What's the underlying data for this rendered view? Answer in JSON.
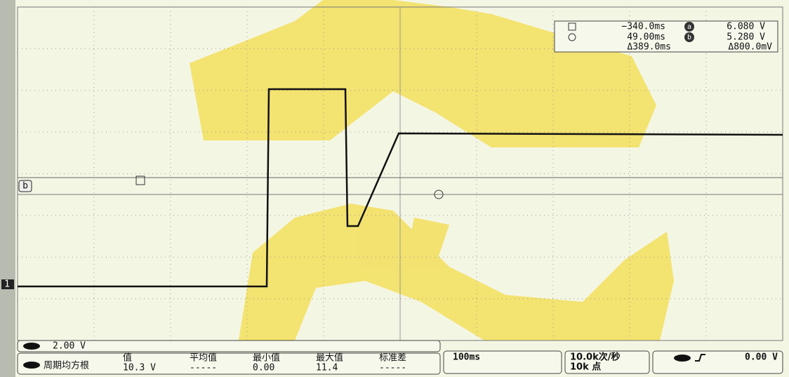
{
  "cursor_readout": {
    "time_a": "−340.0ms",
    "volt_a": "6.080 V",
    "time_b": "49.00ms",
    "volt_b": "5.280 V",
    "delta_time": "Δ389.0ms",
    "delta_volt": "Δ800.0mV",
    "icon_a": "a",
    "icon_b": "b"
  },
  "markers": {
    "cursor_b": "b",
    "channel_1": "1"
  },
  "channel": {
    "scale": "2.00 V"
  },
  "measurement": {
    "name": "周期均方根",
    "headers": [
      "值",
      "平均值",
      "最小值",
      "最大值",
      "标准差"
    ],
    "values": [
      "10.3 V",
      "-----",
      "0.00",
      "11.4",
      "-----"
    ]
  },
  "timebase": {
    "scale": "100ms"
  },
  "acquisition": {
    "rate": "10.0k次/秒",
    "points": "10k 点"
  },
  "trigger": {
    "level": "0.00 V"
  }
}
